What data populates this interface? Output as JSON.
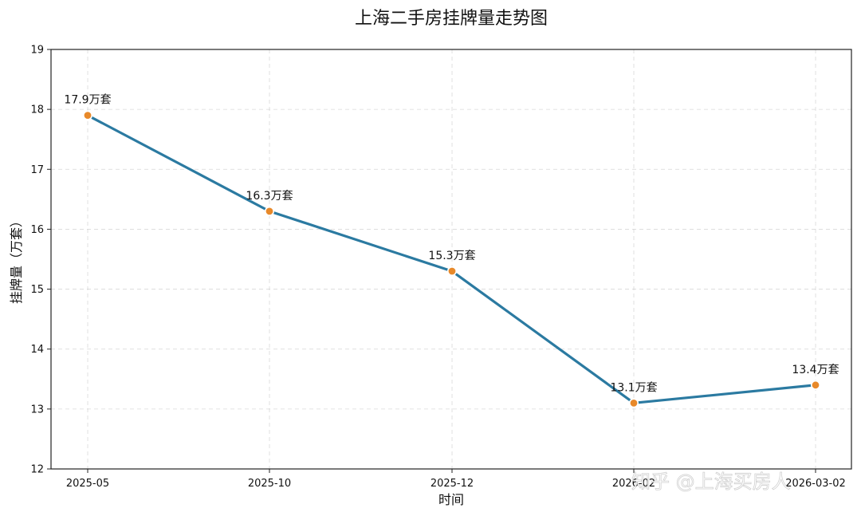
{
  "chart_data": {
    "type": "line",
    "title": "上海二手房挂牌量走势图",
    "xlabel": "时间",
    "ylabel": "挂牌量（万套）",
    "categories": [
      "2025-05",
      "2025-10",
      "2025-12",
      "2026-02",
      "2026-03-02"
    ],
    "series": [
      {
        "values": [
          17.9,
          16.3,
          15.3,
          13.1,
          13.4
        ]
      }
    ],
    "data_labels": [
      "17.9万套",
      "16.3万套",
      "15.3万套",
      "13.1万套",
      "13.4万套"
    ],
    "ylim": [
      12,
      19
    ],
    "yticks": [
      "12",
      "13",
      "14",
      "15",
      "16",
      "17",
      "18",
      "19"
    ],
    "grid": true,
    "line_color": "#2b7aa1",
    "marker_color": "#e8892a"
  },
  "watermark": "知乎 @上海买房人"
}
